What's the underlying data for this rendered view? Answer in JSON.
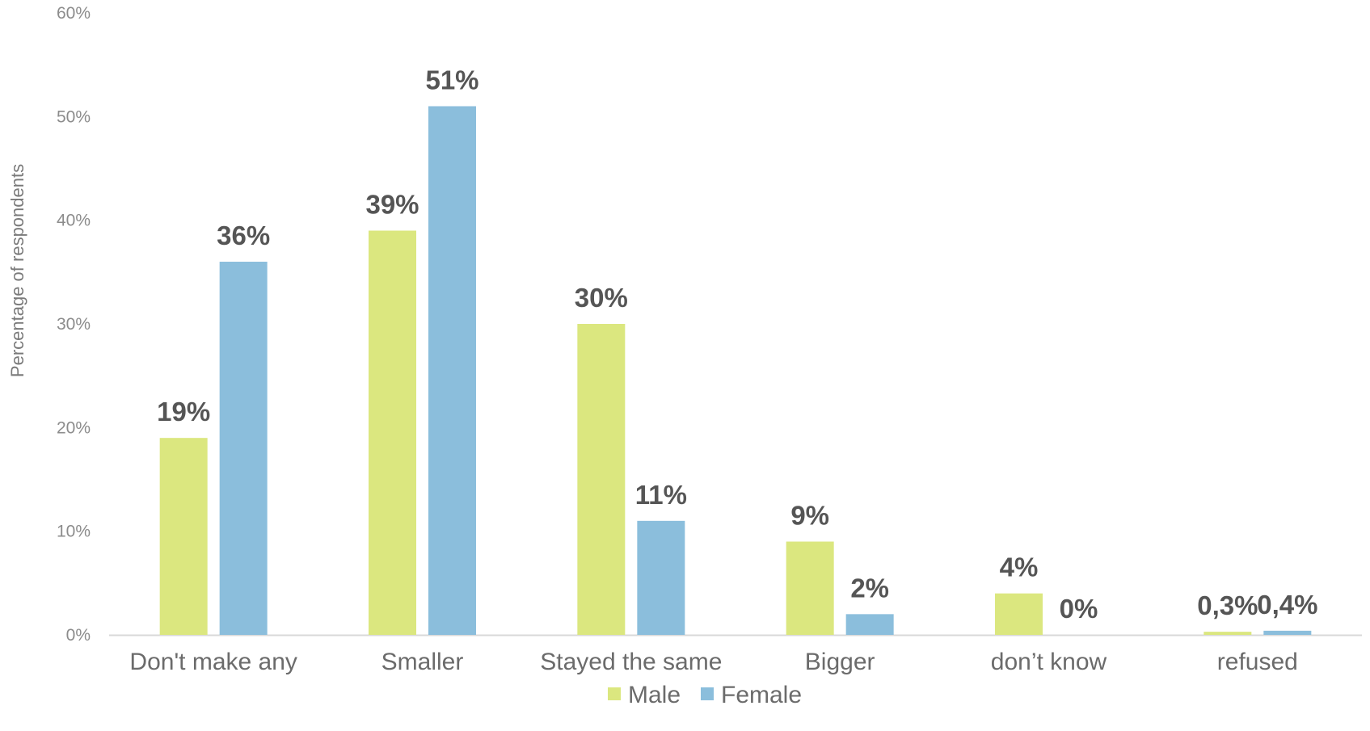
{
  "chart_data": {
    "type": "bar",
    "categories": [
      "Don't make any",
      "Smaller",
      "Stayed the same",
      "Bigger",
      "don’t know",
      "refused"
    ],
    "series": [
      {
        "name": "Male",
        "color": "#dbe77f",
        "values": [
          19,
          39,
          30,
          9,
          4,
          0.3
        ],
        "labels": [
          "19%",
          "39%",
          "30%",
          "9%",
          "4%",
          "0,3%"
        ]
      },
      {
        "name": "Female",
        "color": "#8bbedc",
        "values": [
          36,
          51,
          11,
          2,
          0,
          0.4
        ],
        "labels": [
          "36%",
          "51%",
          "11%",
          "2%",
          "0%",
          "0,4%"
        ]
      }
    ],
    "ylabel": "Percentage of respondents",
    "xlabel": "",
    "ylim": [
      0,
      60
    ],
    "yticks": [
      0,
      10,
      20,
      30,
      40,
      50,
      60
    ],
    "ytick_labels": [
      "0%",
      "10%",
      "20%",
      "30%",
      "40%",
      "50%",
      "60%"
    ],
    "grid": false,
    "legend_position": "bottom",
    "axis_color": "#d9d9d9"
  }
}
